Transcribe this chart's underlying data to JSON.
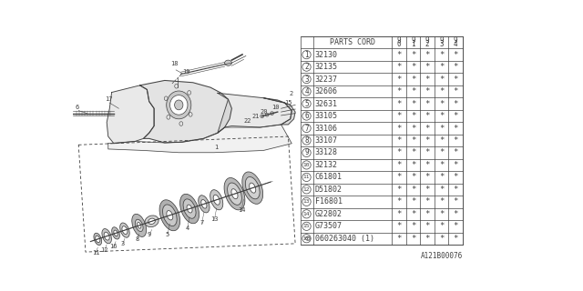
{
  "title": "A121B00076",
  "parts_table": {
    "header": [
      "PARTS CORD",
      "9\n0",
      "9\n1",
      "9\n2",
      "9\n3",
      "9\n4"
    ],
    "rows": [
      [
        "1",
        "32130"
      ],
      [
        "2",
        "32135"
      ],
      [
        "3",
        "32237"
      ],
      [
        "4",
        "32606"
      ],
      [
        "5",
        "32631"
      ],
      [
        "6",
        "33105"
      ],
      [
        "7",
        "33106"
      ],
      [
        "8",
        "33107"
      ],
      [
        "9",
        "33128"
      ],
      [
        "10",
        "32132"
      ],
      [
        "11",
        "C61801"
      ],
      [
        "12",
        "D51802"
      ],
      [
        "13",
        "F16801"
      ],
      [
        "14",
        "G22802"
      ],
      [
        "15",
        "G73507"
      ],
      [
        "16",
        "060263040 (1)"
      ]
    ]
  },
  "bg_color": "#ffffff",
  "line_color": "#404040",
  "light_gray": "#c8c8c8",
  "mid_gray": "#909090"
}
